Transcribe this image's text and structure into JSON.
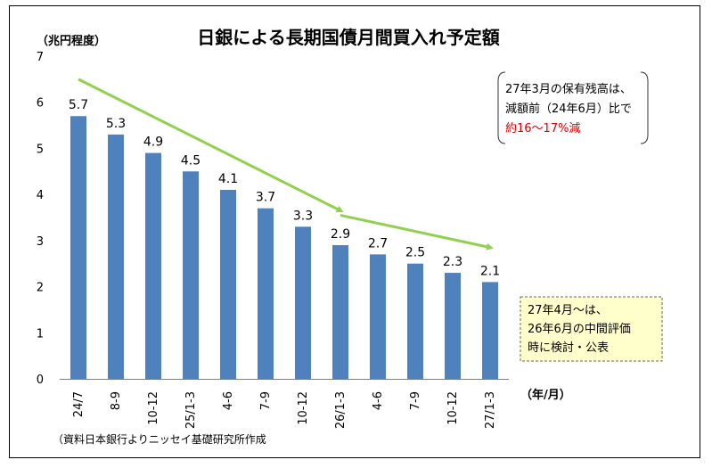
{
  "chart_data": {
    "type": "bar",
    "title": "日銀による長期国債月間買入れ予定額",
    "ylabel": "（兆円程度）",
    "xlabel": "（年/月）",
    "ylim": [
      0,
      7
    ],
    "yticks": [
      0,
      1,
      2,
      3,
      4,
      5,
      6,
      7
    ],
    "categories": [
      "24/7",
      "8-9",
      "10-12",
      "25/1-3",
      "4-6",
      "7-9",
      "10-12",
      "26/1-3",
      "4-6",
      "7-9",
      "10-12",
      "27/1-3"
    ],
    "values": [
      5.7,
      5.3,
      4.9,
      4.5,
      4.1,
      3.7,
      3.3,
      2.9,
      2.7,
      2.5,
      2.3,
      2.1
    ],
    "value_labels": [
      "5.7",
      "5.3",
      "4.9",
      "4.5",
      "4.1",
      "3.7",
      "3.3",
      "2.9",
      "2.7",
      "2.5",
      "2.3",
      "2.1"
    ],
    "bar_color": "#4f81bd",
    "trend_color": "#92d050",
    "trend_arrows": [
      {
        "from": [
          0,
          6.5
        ],
        "to": [
          7,
          3.65
        ]
      },
      {
        "from": [
          7,
          3.55
        ],
        "to": [
          11,
          2.85
        ]
      }
    ],
    "annotations": {
      "note1_lines": [
        "27年3月の保有残高は、",
        "減額前（24年6月）比で"
      ],
      "note1_highlight": "約16〜17%減",
      "note1_highlight_color": "#e00000",
      "note2_lines": [
        "27年4月〜は、",
        "26年6月の中間評価",
        "時に検討・公表"
      ]
    },
    "source": "（資料日本銀行よりニッセイ基礎研究所作成"
  }
}
